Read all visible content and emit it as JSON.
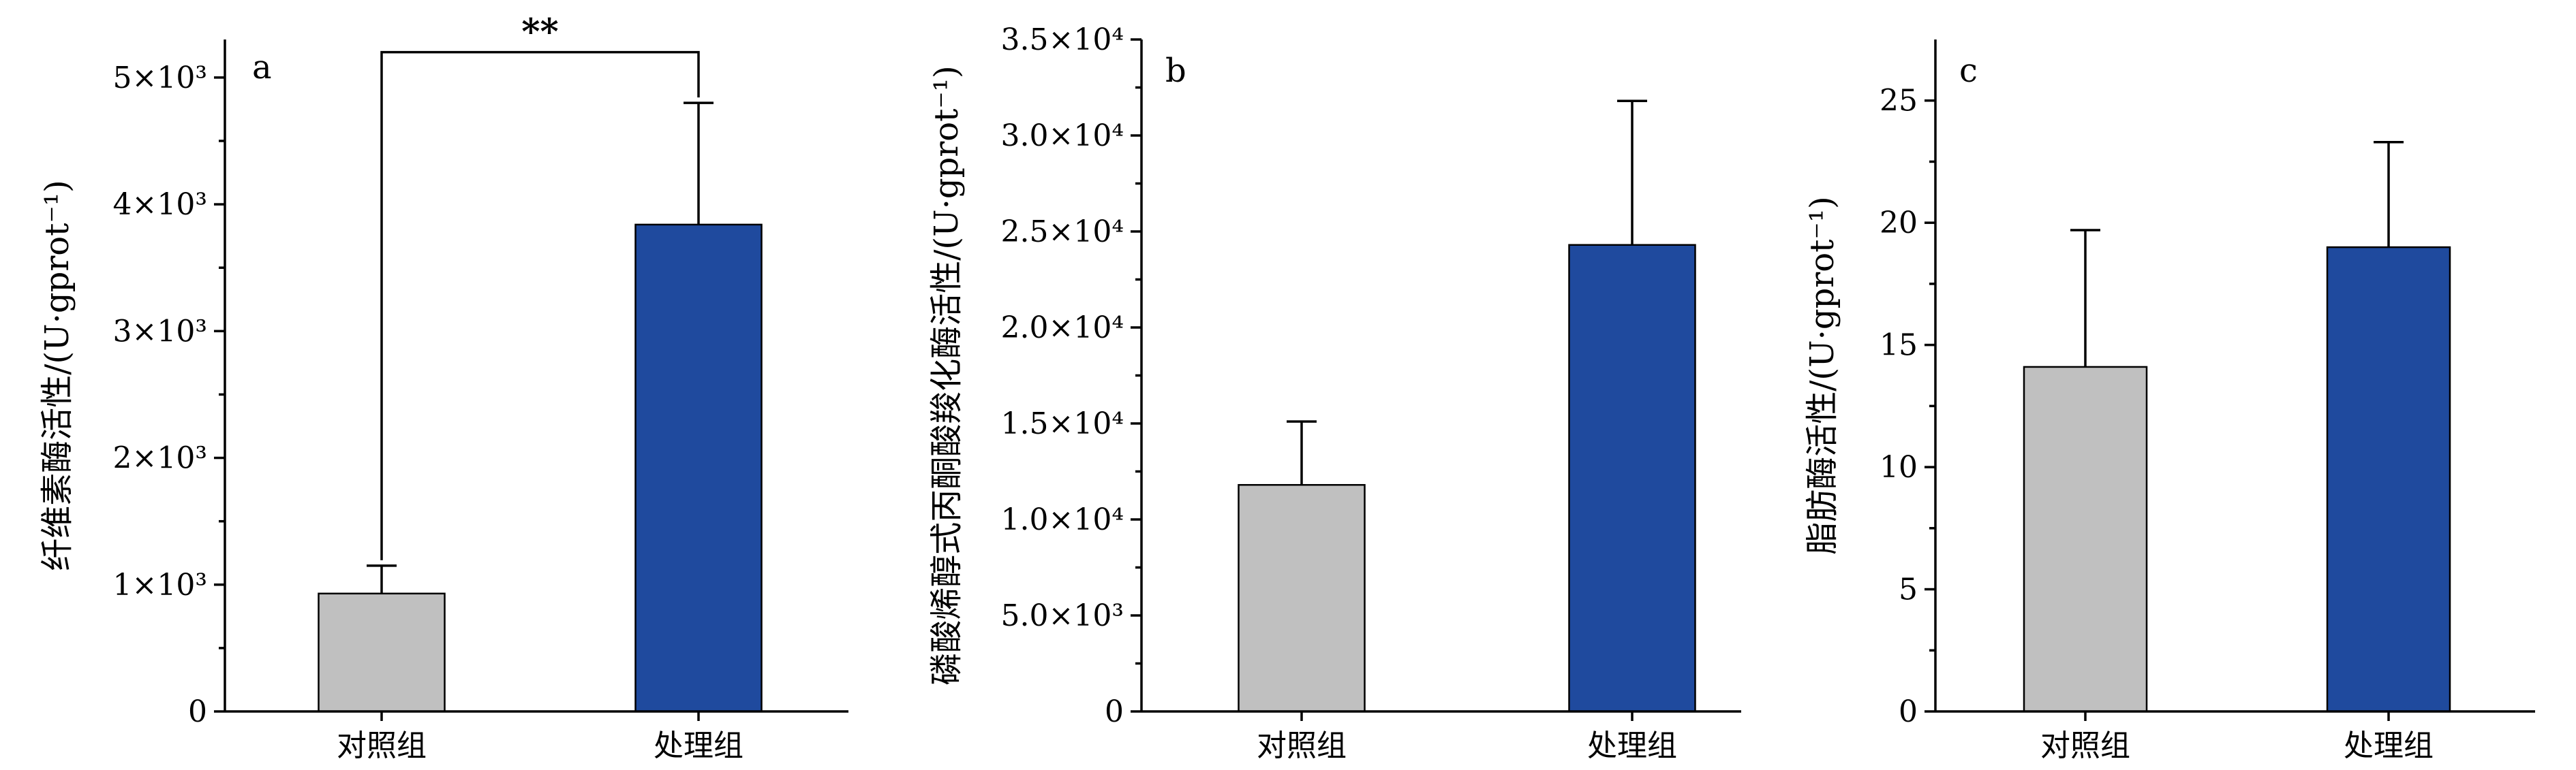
{
  "colors": {
    "control": "#c0c0c0",
    "treatment": "#1f4a9e"
  },
  "chart_data": [
    {
      "type": "bar",
      "panel_letter": "a",
      "categories": [
        "对照组",
        "处理组"
      ],
      "values": [
        930,
        3840
      ],
      "errors": [
        220,
        960
      ],
      "ylabel": "纤维素酶活性/(U·gprot⁻¹)",
      "ylim": [
        0,
        5300
      ],
      "yticks": [
        {
          "value": 0,
          "label": "0"
        },
        {
          "value": 1000,
          "label": "1×10³"
        },
        {
          "value": 2000,
          "label": "2×10³"
        },
        {
          "value": 3000,
          "label": "3×10³"
        },
        {
          "value": 4000,
          "label": "4×10³"
        },
        {
          "value": 5000,
          "label": "5×10³"
        }
      ],
      "significance": {
        "label": "**",
        "from": 0,
        "to": 1,
        "level": 5200
      },
      "grid": false
    },
    {
      "type": "bar",
      "panel_letter": "b",
      "categories": [
        "对照组",
        "处理组"
      ],
      "values": [
        11800,
        24300
      ],
      "errors": [
        3300,
        7500
      ],
      "ylabel": "磷酸烯醇式丙酮酸羧化酶活性/(U·gprot⁻¹)",
      "ylim": [
        0,
        35000
      ],
      "yticks": [
        {
          "value": 0,
          "label": "0"
        },
        {
          "value": 5000,
          "label": "5.0×10³"
        },
        {
          "value": 10000,
          "label": "1.0×10⁴"
        },
        {
          "value": 15000,
          "label": "1.5×10⁴"
        },
        {
          "value": 20000,
          "label": "2.0×10⁴"
        },
        {
          "value": 25000,
          "label": "2.5×10⁴"
        },
        {
          "value": 30000,
          "label": "3.0×10⁴"
        },
        {
          "value": 35000,
          "label": "3.5×10⁴"
        }
      ],
      "grid": false
    },
    {
      "type": "bar",
      "panel_letter": "c",
      "categories": [
        "对照组",
        "处理组"
      ],
      "values": [
        14.1,
        19.0
      ],
      "errors": [
        5.6,
        4.3
      ],
      "ylabel": "脂肪酶活性/(U·gprot⁻¹)",
      "ylim": [
        0,
        27.5
      ],
      "yticks": [
        {
          "value": 0,
          "label": "0"
        },
        {
          "value": 5,
          "label": "5"
        },
        {
          "value": 10,
          "label": "10"
        },
        {
          "value": 15,
          "label": "15"
        },
        {
          "value": 20,
          "label": "20"
        },
        {
          "value": 25,
          "label": "25"
        }
      ],
      "grid": false
    }
  ]
}
